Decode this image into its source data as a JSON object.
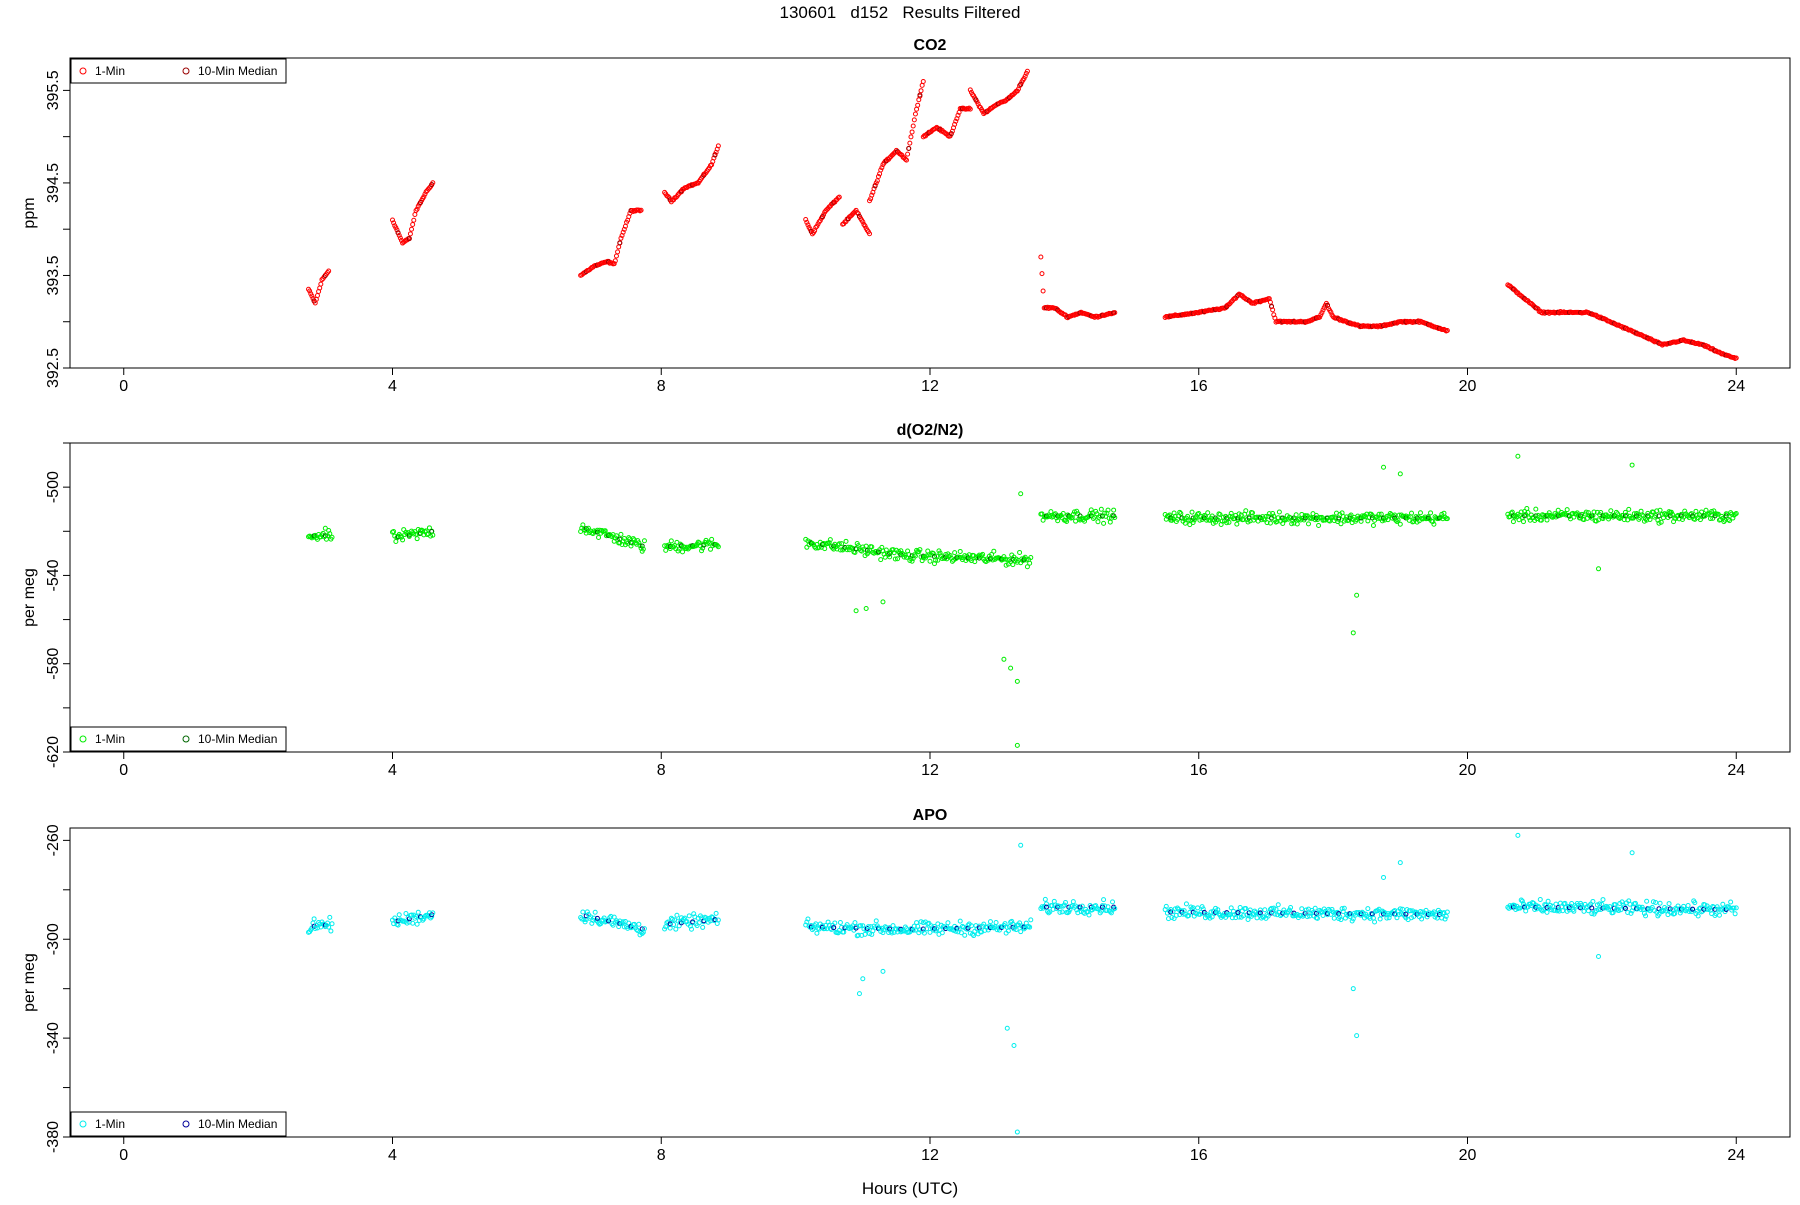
{
  "page_title": "130601   d152   Results Filtered",
  "xlabel": "Hours (UTC)",
  "chart_data": [
    {
      "type": "scatter",
      "title": "CO2",
      "ylabel": "ppm",
      "xlim": [
        -0.8,
        24.8
      ],
      "ylim": [
        392.5,
        395.85
      ],
      "x_ticks": [
        0,
        4,
        8,
        12,
        16,
        20,
        24
      ],
      "y_ticks": [
        392.5,
        393.5,
        394.5,
        395.5
      ],
      "legend_position": "top-left",
      "series": [
        {
          "name": "1-Min",
          "color": "#ff0000",
          "segments": [
            {
              "x0": 2.75,
              "x1": 3.05,
              "pts": [
                [
                  0,
                  393.35
                ],
                [
                  0.1,
                  393.2
                ],
                [
                  0.2,
                  393.45
                ],
                [
                  0.3,
                  393.55
                ]
              ]
            },
            {
              "x0": 4.0,
              "x1": 4.6,
              "pts": [
                [
                  0,
                  394.1
                ],
                [
                  0.15,
                  393.85
                ],
                [
                  0.25,
                  393.9
                ],
                [
                  0.35,
                  394.2
                ],
                [
                  0.5,
                  394.4
                ],
                [
                  0.6,
                  394.5
                ]
              ]
            },
            {
              "x0": 6.8,
              "x1": 7.7,
              "pts": [
                [
                  0,
                  393.5
                ],
                [
                  0.2,
                  393.6
                ],
                [
                  0.4,
                  393.65
                ],
                [
                  0.5,
                  393.62
                ],
                [
                  0.6,
                  393.9
                ],
                [
                  0.75,
                  394.2
                ],
                [
                  0.9,
                  394.2
                ]
              ]
            },
            {
              "x0": 8.05,
              "x1": 8.85,
              "pts": [
                [
                  0,
                  394.4
                ],
                [
                  0.1,
                  394.3
                ],
                [
                  0.3,
                  394.45
                ],
                [
                  0.5,
                  394.5
                ],
                [
                  0.7,
                  394.7
                ],
                [
                  0.8,
                  394.9
                ]
              ]
            },
            {
              "x0": 10.15,
              "x1": 10.65,
              "pts": [
                [
                  0,
                  394.1
                ],
                [
                  0.1,
                  393.95
                ],
                [
                  0.3,
                  394.2
                ],
                [
                  0.5,
                  394.35
                ]
              ]
            },
            {
              "x0": 10.7,
              "x1": 11.1,
              "pts": [
                [
                  0,
                  394.05
                ],
                [
                  0.2,
                  394.2
                ],
                [
                  0.4,
                  393.95
                ]
              ]
            },
            {
              "x0": 11.1,
              "x1": 11.9,
              "pts": [
                [
                  0,
                  394.3
                ],
                [
                  0.2,
                  394.7
                ],
                [
                  0.4,
                  394.85
                ],
                [
                  0.55,
                  394.75
                ],
                [
                  0.7,
                  395.3
                ],
                [
                  0.8,
                  395.6
                ]
              ]
            },
            {
              "x0": 11.9,
              "x1": 12.6,
              "pts": [
                [
                  0,
                  395.0
                ],
                [
                  0.2,
                  395.1
                ],
                [
                  0.4,
                  395.0
                ],
                [
                  0.55,
                  395.3
                ],
                [
                  0.7,
                  395.3
                ]
              ]
            },
            {
              "x0": 12.6,
              "x1": 13.45,
              "pts": [
                [
                  0,
                  395.5
                ],
                [
                  0.2,
                  395.25
                ],
                [
                  0.4,
                  395.35
                ],
                [
                  0.55,
                  395.4
                ],
                [
                  0.7,
                  395.5
                ],
                [
                  0.85,
                  395.7
                ]
              ]
            },
            {
              "x0": 13.65,
              "x1": 14.75,
              "pts": [
                [
                  0,
                  393.7
                ],
                [
                  0.05,
                  393.15
                ],
                [
                  0.2,
                  393.15
                ],
                [
                  0.4,
                  393.05
                ],
                [
                  0.6,
                  393.1
                ],
                [
                  0.8,
                  393.05
                ],
                [
                  1.1,
                  393.1
                ]
              ]
            },
            {
              "x0": 15.5,
              "x1": 19.7,
              "pts": [
                [
                  0,
                  393.05
                ],
                [
                  0.5,
                  393.1
                ],
                [
                  0.9,
                  393.15
                ],
                [
                  1.1,
                  393.3
                ],
                [
                  1.3,
                  393.2
                ],
                [
                  1.55,
                  393.25
                ],
                [
                  1.65,
                  393.0
                ],
                [
                  2.1,
                  393.0
                ],
                [
                  2.3,
                  393.05
                ],
                [
                  2.4,
                  393.2
                ],
                [
                  2.5,
                  393.05
                ],
                [
                  2.9,
                  392.95
                ],
                [
                  3.2,
                  392.95
                ],
                [
                  3.5,
                  393.0
                ],
                [
                  3.8,
                  393.0
                ],
                [
                  4.2,
                  392.9
                ]
              ]
            },
            {
              "x0": 20.6,
              "x1": 24.0,
              "pts": [
                [
                  0,
                  393.4
                ],
                [
                  0.5,
                  393.1
                ],
                [
                  1.2,
                  393.1
                ],
                [
                  2.0,
                  392.85
                ],
                [
                  2.3,
                  392.75
                ],
                [
                  2.6,
                  392.8
                ],
                [
                  2.9,
                  392.75
                ],
                [
                  3.2,
                  392.65
                ],
                [
                  3.4,
                  392.6
                ]
              ]
            }
          ]
        },
        {
          "name": "10-Min Median",
          "color": "#990000",
          "segments": []
        }
      ]
    },
    {
      "type": "scatter",
      "title": "d(O2/N2)",
      "ylabel": "per meg",
      "xlim": [
        -0.8,
        24.8
      ],
      "ylim": [
        -620,
        -480
      ],
      "x_ticks": [
        0,
        4,
        8,
        12,
        16,
        20,
        24
      ],
      "y_ticks": [
        -620,
        -580,
        -540,
        -500
      ],
      "legend_position": "bottom-left",
      "series": [
        {
          "name": "1-Min",
          "color": "#00ee00",
          "segments": [
            {
              "x0": 2.75,
              "x1": 3.1,
              "pts": [
                [
                  0,
                  -522
                ],
                [
                  0.35,
                  -522
                ]
              ]
            },
            {
              "x0": 4.0,
              "x1": 4.6,
              "pts": [
                [
                  0,
                  -523
                ],
                [
                  0.6,
                  -520
                ]
              ]
            },
            {
              "x0": 6.8,
              "x1": 7.75,
              "pts": [
                [
                  0,
                  -518
                ],
                [
                  0.95,
                  -527
                ]
              ]
            },
            {
              "x0": 8.05,
              "x1": 8.85,
              "pts": [
                [
                  0,
                  -527
                ],
                [
                  0.8,
                  -526
                ]
              ]
            },
            {
              "x0": 10.15,
              "x1": 13.5,
              "pts": [
                [
                  0,
                  -525
                ],
                [
                  1.5,
                  -531
                ],
                [
                  3.35,
                  -533
                ]
              ]
            },
            {
              "x0": 13.65,
              "x1": 14.75,
              "pts": [
                [
                  0,
                  -513
                ],
                [
                  1.1,
                  -513
                ]
              ]
            },
            {
              "x0": 15.5,
              "x1": 19.7,
              "pts": [
                [
                  0,
                  -514
                ],
                [
                  4.2,
                  -514
                ]
              ]
            },
            {
              "x0": 20.6,
              "x1": 24.0,
              "pts": [
                [
                  0,
                  -513
                ],
                [
                  3.4,
                  -513
                ]
              ]
            }
          ]
        },
        {
          "name": "10-Min Median",
          "color": "#006600",
          "segments": []
        }
      ]
    },
    {
      "type": "scatter",
      "title": "APO",
      "ylabel": "per meg",
      "xlim": [
        -0.8,
        24.8
      ],
      "ylim": [
        -380,
        -255
      ],
      "x_ticks": [
        0,
        4,
        8,
        12,
        16,
        20,
        24
      ],
      "y_ticks": [
        -380,
        -340,
        -300,
        -260
      ],
      "legend_position": "bottom-left",
      "series": [
        {
          "name": "1-Min",
          "color": "#00eeee",
          "segments": [
            {
              "x0": 2.75,
              "x1": 3.1,
              "pts": [
                [
                  0,
                  -295
                ],
                [
                  0.35,
                  -294
                ]
              ]
            },
            {
              "x0": 4.0,
              "x1": 4.6,
              "pts": [
                [
                  0,
                  -293
                ],
                [
                  0.6,
                  -290
                ]
              ]
            },
            {
              "x0": 6.8,
              "x1": 7.75,
              "pts": [
                [
                  0,
                  -290
                ],
                [
                  0.95,
                  -296
                ]
              ]
            },
            {
              "x0": 8.05,
              "x1": 8.85,
              "pts": [
                [
                  0,
                  -294
                ],
                [
                  0.8,
                  -292
                ]
              ]
            },
            {
              "x0": 10.15,
              "x1": 13.5,
              "pts": [
                [
                  0,
                  -295
                ],
                [
                  1.5,
                  -296
                ],
                [
                  3.35,
                  -295
                ]
              ]
            },
            {
              "x0": 13.65,
              "x1": 14.75,
              "pts": [
                [
                  0,
                  -287
                ],
                [
                  1.1,
                  -287
                ]
              ]
            },
            {
              "x0": 15.5,
              "x1": 19.7,
              "pts": [
                [
                  0,
                  -289
                ],
                [
                  4.2,
                  -290
                ]
              ]
            },
            {
              "x0": 20.6,
              "x1": 24.0,
              "pts": [
                [
                  0,
                  -287
                ],
                [
                  3.4,
                  -288
                ]
              ]
            }
          ]
        },
        {
          "name": "10-Min Median",
          "color": "#000099",
          "segments": []
        }
      ]
    }
  ],
  "outliers": [
    [],
    [
      [
        10.9,
        -556
      ],
      [
        11.05,
        -555
      ],
      [
        11.3,
        -552
      ],
      [
        13.1,
        -578
      ],
      [
        13.2,
        -582
      ],
      [
        13.3,
        -588
      ],
      [
        13.3,
        -617
      ],
      [
        13.35,
        -503
      ],
      [
        18.3,
        -566
      ],
      [
        18.35,
        -549
      ],
      [
        18.75,
        -491
      ],
      [
        19.0,
        -494
      ],
      [
        20.75,
        -486
      ],
      [
        21.95,
        -537
      ],
      [
        22.45,
        -490
      ]
    ],
    [
      [
        10.95,
        -322
      ],
      [
        11.0,
        -316
      ],
      [
        11.3,
        -313
      ],
      [
        13.15,
        -336
      ],
      [
        13.25,
        -343
      ],
      [
        13.3,
        -378
      ],
      [
        13.35,
        -262
      ],
      [
        18.3,
        -320
      ],
      [
        18.35,
        -339
      ],
      [
        18.75,
        -275
      ],
      [
        19.0,
        -269
      ],
      [
        20.75,
        -258
      ],
      [
        21.95,
        -307
      ],
      [
        22.45,
        -265
      ]
    ]
  ]
}
